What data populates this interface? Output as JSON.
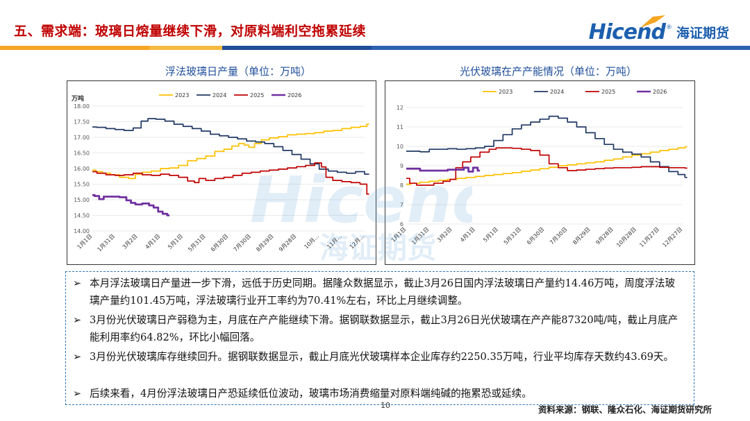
{
  "header": {
    "title": "五、需求端：玻璃日熔量继续下滑，对原料端利空拖累延续",
    "logo_text": "Hicend",
    "logo_cn": "海证期货",
    "colors": {
      "title": "#c00000",
      "brand": "#1c5fae",
      "band_orange": "#f5a623",
      "band_blue": "#1f4e9a"
    }
  },
  "watermark": {
    "text": "Hicend",
    "cn": "海证期货"
  },
  "charts": {
    "left_title": "浮法玻璃日产量（单位：万吨）",
    "right_title": "光伏玻璃在产产能情况（单位：万吨）",
    "left_unit": "万吨"
  },
  "chart_data": [
    {
      "type": "line",
      "title": "浮法玻璃日产量（单位：万吨）",
      "ylabel": "万吨",
      "ylim": [
        14.0,
        18.0
      ],
      "yticks": [
        "18.00",
        "17.50",
        "17.00",
        "16.50",
        "16.00",
        "15.50",
        "15.00",
        "14.50",
        "14.00"
      ],
      "categories": [
        "1月1日",
        "1月31日",
        "3月2日",
        "4月1日",
        "5月1日",
        "5月31日",
        "6月30日",
        "7月30日",
        "8月29日",
        "9月28日",
        "10月...",
        "11月...",
        "12月..."
      ],
      "legend": "top",
      "series": [
        {
          "name": "2023",
          "color": "#ffc000",
          "points": [
            [
              0,
              15.95
            ],
            [
              0.3,
              15.9
            ],
            [
              0.6,
              15.85
            ],
            [
              1,
              15.8
            ],
            [
              1.4,
              15.72
            ],
            [
              1.8,
              15.68
            ],
            [
              2,
              15.82
            ],
            [
              2.4,
              15.88
            ],
            [
              2.8,
              15.92
            ],
            [
              3.2,
              16.0
            ],
            [
              3.6,
              16.02
            ],
            [
              4,
              16.1
            ],
            [
              4.4,
              16.25
            ],
            [
              4.8,
              16.32
            ],
            [
              5.2,
              16.4
            ],
            [
              5.6,
              16.55
            ],
            [
              6,
              16.62
            ],
            [
              6.3,
              16.72
            ],
            [
              6.6,
              16.8
            ],
            [
              6.8,
              16.75
            ],
            [
              7,
              16.68
            ],
            [
              7.3,
              16.8
            ],
            [
              7.6,
              16.92
            ],
            [
              8,
              16.98
            ],
            [
              8.4,
              17.02
            ],
            [
              8.8,
              17.08
            ],
            [
              9.2,
              17.1
            ],
            [
              9.6,
              17.12
            ],
            [
              10,
              17.15
            ],
            [
              10.4,
              17.2
            ],
            [
              10.8,
              17.22
            ],
            [
              11.2,
              17.28
            ],
            [
              11.6,
              17.32
            ],
            [
              12,
              17.35
            ],
            [
              12.2,
              17.42
            ]
          ]
        },
        {
          "name": "2024",
          "color": "#203864",
          "points": [
            [
              0,
              17.33
            ],
            [
              0.4,
              17.32
            ],
            [
              0.8,
              17.28
            ],
            [
              1.2,
              17.25
            ],
            [
              1.6,
              17.22
            ],
            [
              2,
              17.3
            ],
            [
              2.3,
              17.52
            ],
            [
              2.6,
              17.6
            ],
            [
              3,
              17.58
            ],
            [
              3.4,
              17.52
            ],
            [
              3.8,
              17.42
            ],
            [
              4.2,
              17.35
            ],
            [
              4.6,
              17.28
            ],
            [
              5,
              17.2
            ],
            [
              5.4,
              17.1
            ],
            [
              5.8,
              17.05
            ],
            [
              6.2,
              17.0
            ],
            [
              6.6,
              16.95
            ],
            [
              7,
              16.88
            ],
            [
              7.4,
              16.85
            ],
            [
              7.8,
              16.8
            ],
            [
              8.2,
              16.7
            ],
            [
              8.6,
              16.58
            ],
            [
              9,
              16.45
            ],
            [
              9.4,
              16.3
            ],
            [
              9.8,
              16.15
            ],
            [
              10.2,
              15.98
            ],
            [
              10.6,
              15.92
            ],
            [
              11,
              15.88
            ],
            [
              11.4,
              15.85
            ],
            [
              11.8,
              15.9
            ],
            [
              12.2,
              15.82
            ]
          ]
        },
        {
          "name": "2025",
          "color": "#c00000",
          "points": [
            [
              0,
              15.9
            ],
            [
              0.4,
              15.85
            ],
            [
              0.8,
              15.8
            ],
            [
              1.2,
              15.78
            ],
            [
              1.6,
              15.8
            ],
            [
              2,
              15.85
            ],
            [
              2.4,
              15.8
            ],
            [
              2.8,
              15.78
            ],
            [
              3.2,
              15.82
            ],
            [
              3.6,
              15.78
            ],
            [
              4,
              15.72
            ],
            [
              4.4,
              15.6
            ],
            [
              4.6,
              15.55
            ],
            [
              4.8,
              15.68
            ],
            [
              5.2,
              15.62
            ],
            [
              5.6,
              15.68
            ],
            [
              6,
              15.72
            ],
            [
              6.4,
              15.78
            ],
            [
              6.8,
              15.85
            ],
            [
              7.2,
              15.88
            ],
            [
              7.6,
              15.92
            ],
            [
              8,
              15.95
            ],
            [
              8.4,
              15.98
            ],
            [
              8.8,
              16.02
            ],
            [
              9.2,
              16.06
            ],
            [
              9.6,
              16.1
            ],
            [
              10,
              16.18
            ],
            [
              10.2,
              16.05
            ],
            [
              10.4,
              15.72
            ],
            [
              10.8,
              15.62
            ],
            [
              11.2,
              15.58
            ],
            [
              11.6,
              15.55
            ],
            [
              12,
              15.5
            ],
            [
              12.2,
              15.18
            ]
          ]
        },
        {
          "name": "2026",
          "color": "#7030a0",
          "points": [
            [
              0,
              15.15
            ],
            [
              0.2,
              15.12
            ],
            [
              0.4,
              15.02
            ],
            [
              0.6,
              15.1
            ],
            [
              1,
              15.1
            ],
            [
              1.4,
              15.08
            ],
            [
              1.6,
              14.98
            ],
            [
              1.8,
              14.9
            ],
            [
              2,
              14.85
            ],
            [
              2.4,
              14.88
            ],
            [
              2.6,
              14.82
            ],
            [
              2.8,
              14.75
            ],
            [
              3,
              14.62
            ],
            [
              3.2,
              14.55
            ],
            [
              3.4,
              14.5
            ]
          ]
        }
      ]
    },
    {
      "type": "line",
      "title": "光伏玻璃在产产能情况（单位：万吨）",
      "ylim": [
        6,
        12
      ],
      "yticks": [
        "12",
        "11",
        "10",
        "9",
        "8",
        "7",
        "6"
      ],
      "categories": [
        "1月1日",
        "1月31日",
        "3月2日",
        "4月1日",
        "5月1日",
        "5月31日",
        "6月30日",
        "7月30日",
        "8月29日",
        "9月28日",
        "10月28日",
        "11月27日",
        "12月27日"
      ],
      "legend": "top",
      "series": [
        {
          "name": "2023",
          "color": "#ffc000",
          "points": [
            [
              0,
              8.05
            ],
            [
              0.4,
              8.1
            ],
            [
              0.8,
              8.15
            ],
            [
              1.2,
              8.2
            ],
            [
              1.6,
              8.25
            ],
            [
              2,
              8.3
            ],
            [
              2.4,
              8.35
            ],
            [
              2.8,
              8.4
            ],
            [
              3.2,
              8.45
            ],
            [
              3.6,
              8.5
            ],
            [
              4,
              8.55
            ],
            [
              4.4,
              8.6
            ],
            [
              4.8,
              8.65
            ],
            [
              5.2,
              8.72
            ],
            [
              5.6,
              8.78
            ],
            [
              6,
              8.85
            ],
            [
              6.4,
              8.92
            ],
            [
              6.8,
              9.0
            ],
            [
              7.2,
              9.05
            ],
            [
              7.6,
              9.1
            ],
            [
              8,
              9.15
            ],
            [
              8.4,
              9.2
            ],
            [
              8.8,
              9.28
            ],
            [
              9.2,
              9.35
            ],
            [
              9.6,
              9.45
            ],
            [
              10,
              9.55
            ],
            [
              10.4,
              9.62
            ],
            [
              10.8,
              9.7
            ],
            [
              11.2,
              9.78
            ],
            [
              11.6,
              9.85
            ],
            [
              12,
              9.92
            ],
            [
              12.2,
              9.98
            ]
          ]
        },
        {
          "name": "2024",
          "color": "#203864",
          "points": [
            [
              0,
              9.75
            ],
            [
              0.4,
              9.75
            ],
            [
              0.8,
              9.72
            ],
            [
              1.2,
              9.85
            ],
            [
              1.6,
              9.85
            ],
            [
              2,
              9.88
            ],
            [
              2.4,
              9.85
            ],
            [
              2.8,
              9.88
            ],
            [
              3.2,
              9.92
            ],
            [
              3.6,
              10.0
            ],
            [
              4,
              10.3
            ],
            [
              4.4,
              10.6
            ],
            [
              4.8,
              10.9
            ],
            [
              5.2,
              11.1
            ],
            [
              5.6,
              11.25
            ],
            [
              6,
              11.4
            ],
            [
              6.4,
              11.55
            ],
            [
              6.8,
              11.45
            ],
            [
              7.2,
              11.25
            ],
            [
              7.6,
              11.0
            ],
            [
              8,
              10.7
            ],
            [
              8.4,
              10.4
            ],
            [
              8.8,
              10.1
            ],
            [
              9.2,
              9.85
            ],
            [
              9.6,
              9.7
            ],
            [
              10,
              9.6
            ],
            [
              10.4,
              9.45
            ],
            [
              10.8,
              9.2
            ],
            [
              11.2,
              8.95
            ],
            [
              11.6,
              8.7
            ],
            [
              12,
              8.55
            ],
            [
              12.2,
              8.4
            ]
          ]
        },
        {
          "name": "2025",
          "color": "#c00000",
          "points": [
            [
              0,
              8.35
            ],
            [
              0.3,
              8.1
            ],
            [
              0.6,
              8.0
            ],
            [
              1,
              8.0
            ],
            [
              1.4,
              8.1
            ],
            [
              1.8,
              8.2
            ],
            [
              2,
              8.3
            ],
            [
              2.3,
              8.9
            ],
            [
              2.6,
              9.2
            ],
            [
              3,
              9.45
            ],
            [
              3.4,
              9.7
            ],
            [
              3.8,
              9.85
            ],
            [
              4,
              9.92
            ],
            [
              4.4,
              9.92
            ],
            [
              4.8,
              9.9
            ],
            [
              5.2,
              9.85
            ],
            [
              5.6,
              9.78
            ],
            [
              6,
              9.55
            ],
            [
              6.4,
              9.1
            ],
            [
              6.8,
              8.9
            ],
            [
              7.2,
              8.75
            ],
            [
              7.6,
              8.78
            ],
            [
              8,
              8.82
            ],
            [
              8.4,
              8.85
            ],
            [
              8.8,
              8.88
            ],
            [
              9.2,
              8.9
            ],
            [
              9.6,
              8.9
            ],
            [
              10,
              8.92
            ],
            [
              10.4,
              8.95
            ],
            [
              10.8,
              8.95
            ],
            [
              11.2,
              8.92
            ],
            [
              11.6,
              8.9
            ],
            [
              12,
              8.9
            ],
            [
              12.2,
              8.88
            ]
          ]
        },
        {
          "name": "2026",
          "color": "#7030a0",
          "points": [
            [
              0,
              8.85
            ],
            [
              0.4,
              8.85
            ],
            [
              0.8,
              8.75
            ],
            [
              1.2,
              8.75
            ],
            [
              1.6,
              8.75
            ],
            [
              2,
              8.8
            ],
            [
              2.4,
              8.8
            ],
            [
              2.6,
              8.9
            ],
            [
              2.8,
              8.7
            ],
            [
              3,
              8.9
            ],
            [
              3.2,
              8.75
            ]
          ]
        }
      ]
    }
  ],
  "notes": {
    "mark": "➢",
    "items": [
      "本月浮法玻璃日产量进一步下滑，远低于历史同期。据隆众数据显示，截止3月26日国内浮法玻璃日产量约14.46万吨，周度浮法玻璃产量约101.45万吨，浮法玻璃行业开工率约为70.41%左右，环比上月继续调整。",
      "3月份光伏玻璃日产弱稳为主，月底在产产能继续下滑。据钢联数据显示，截止3月26日光伏玻璃在产产能87320吨/吨，截止月底产能利用率约64.82%，环比小幅回落。",
      "3月份光伏玻璃库存继续回升。据钢联数据显示，截止月底光伏玻璃样本企业库存约2250.35万吨，行业平均库存天数约43.69天。",
      "后续来看，4月份浮法玻璃日产恐延续低位波动，玻璃市场消费缩量对原料端纯碱的拖累恐或延续。"
    ]
  },
  "footer": {
    "page": "10",
    "source": "资料来源：钢联、隆众石化、海证期货研究所"
  }
}
